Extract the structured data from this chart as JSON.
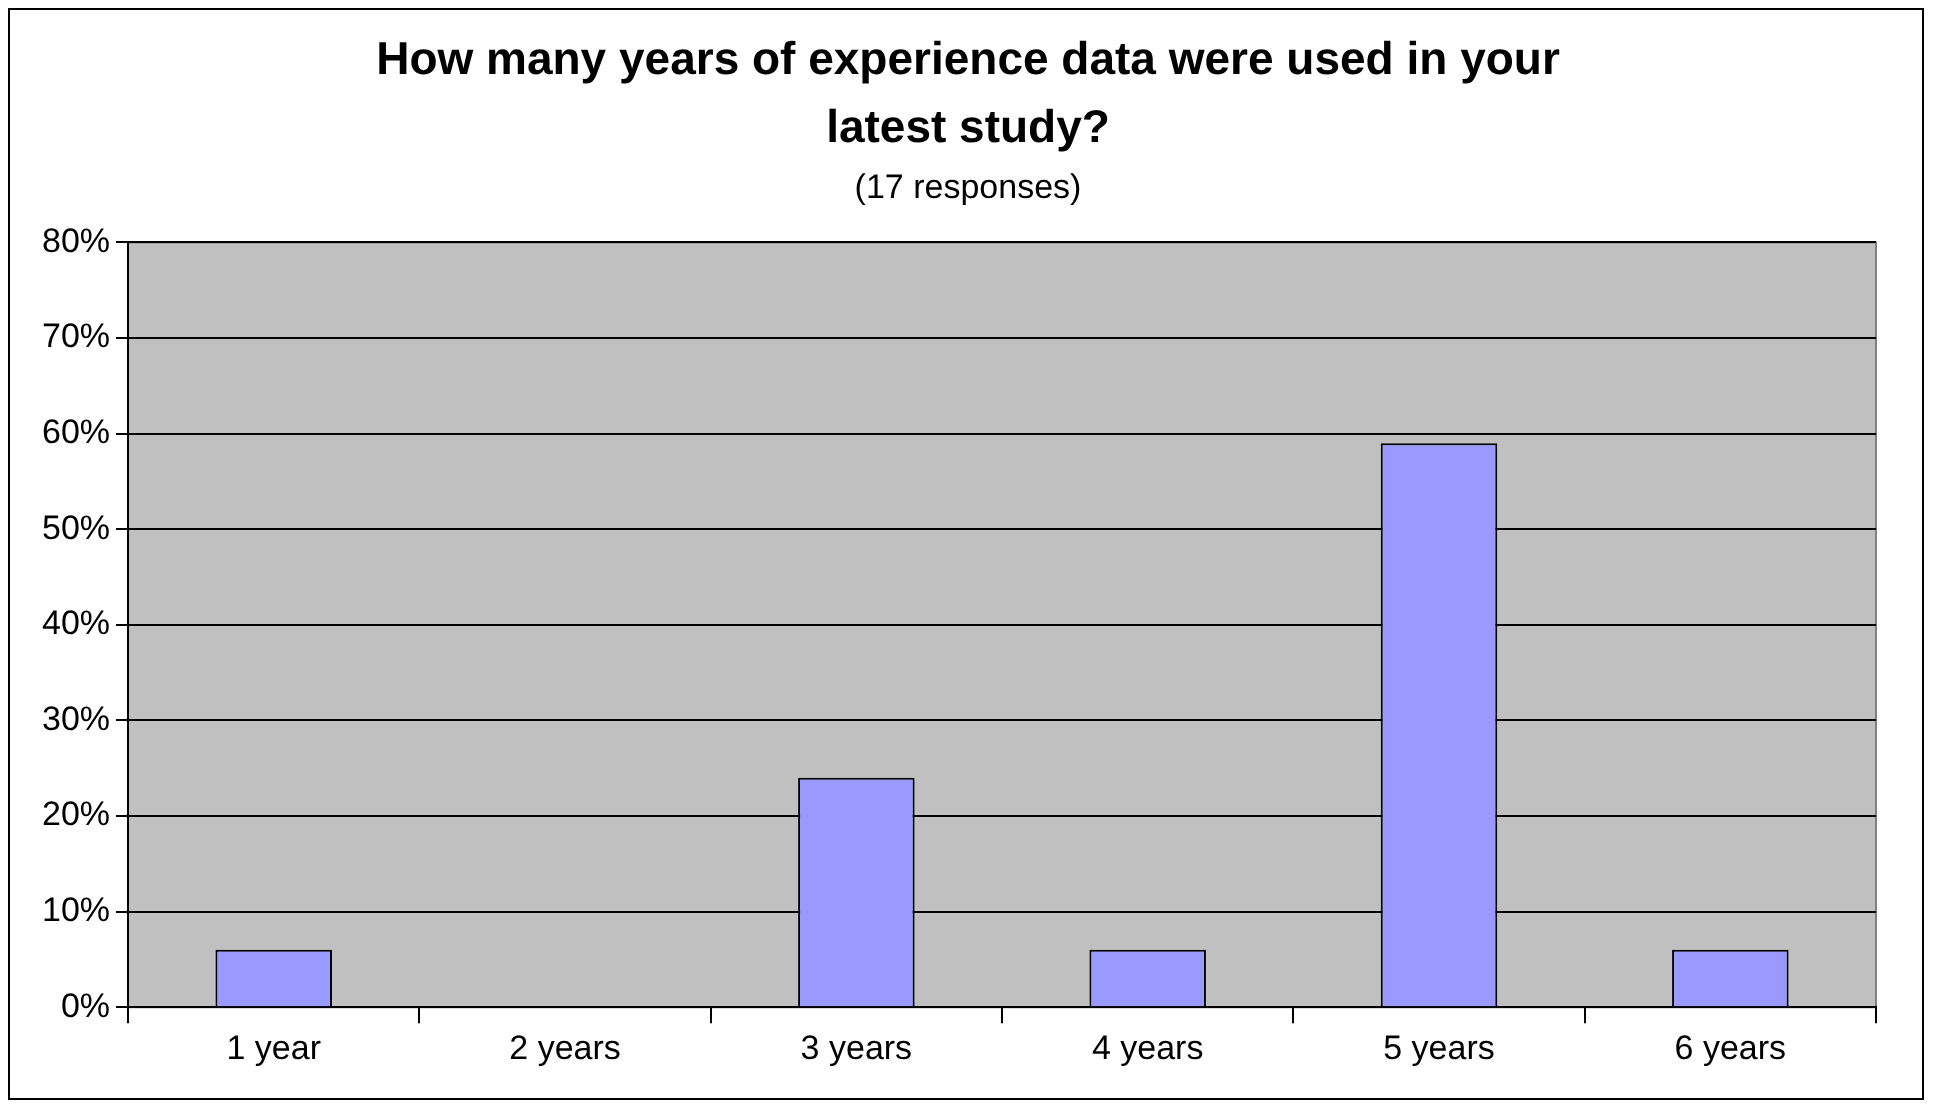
{
  "chart_data": {
    "type": "bar",
    "title": "How many years of experience data were used in your latest study?",
    "subtitle": "(17 responses)",
    "categories": [
      "1 year",
      "2 years",
      "3 years",
      "4 years",
      "5 years",
      "6 years"
    ],
    "values": [
      6,
      0,
      24,
      6,
      59,
      6
    ],
    "color": "#9999ff",
    "ylim": [
      0,
      80
    ],
    "yticks": [
      {
        "value": 0,
        "label": "0%"
      },
      {
        "value": 10,
        "label": "10%"
      },
      {
        "value": 20,
        "label": "20%"
      },
      {
        "value": 30,
        "label": "30%"
      },
      {
        "value": 40,
        "label": "40%"
      },
      {
        "value": 50,
        "label": "50%"
      },
      {
        "value": 60,
        "label": "60%"
      },
      {
        "value": 70,
        "label": "70%"
      },
      {
        "value": 80,
        "label": "80%"
      }
    ],
    "grid": "y",
    "legend": false
  }
}
